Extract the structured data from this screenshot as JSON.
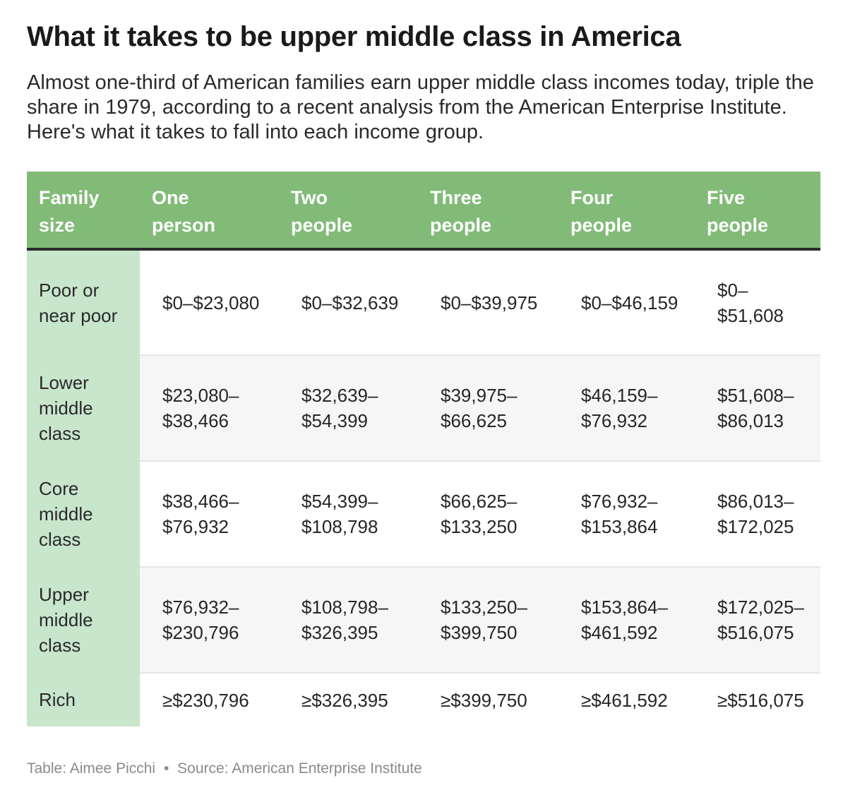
{
  "title": "What it takes to be upper middle class in America",
  "subtitle": "Almost one-third of American families earn upper middle class incomes today, triple the share in 1979, according to a recent analysis from the American Enterprise Institute. Here's what it takes to fall into each income group.",
  "colors": {
    "header_bg": "#82bb78",
    "label_col_bg": "#c8e6cc",
    "alt_row_bg": "#f6f6f6",
    "header_rule": "#2b2b2b"
  },
  "chart_data": {
    "type": "table",
    "columns": [
      "Family size",
      "One person",
      "Two people",
      "Three people",
      "Four people",
      "Five people"
    ],
    "rows": [
      {
        "label": "Poor or near poor",
        "cells": [
          "$0–$23,080",
          "$0–$32,639",
          "$0–$39,975",
          "$0–$46,159",
          "$0–$51,608"
        ]
      },
      {
        "label": "Lower middle class",
        "cells": [
          "$23,080–$38,466",
          "$32,639–$54,399",
          "$39,975–$66,625",
          "$46,159–$76,932",
          "$51,608–$86,013"
        ]
      },
      {
        "label": "Core middle class",
        "cells": [
          "$38,466–$76,932",
          "$54,399–$108,798",
          "$66,625–$133,250",
          "$76,932–$153,864",
          "$86,013–$172,025"
        ]
      },
      {
        "label": "Upper middle class",
        "cells": [
          "$76,932–$230,796",
          "$108,798–$326,395",
          "$133,250–$399,750",
          "$153,864–$461,592",
          "$172,025–$516,075"
        ]
      },
      {
        "label": "Rich",
        "cells": [
          "≥$230,796",
          "≥$326,395",
          "≥$399,750",
          "≥$461,592",
          "≥$516,075"
        ]
      }
    ]
  },
  "footer": {
    "credit": "Table: Aimee Picchi",
    "separator": "•",
    "source": "Source: American Enterprise Institute"
  }
}
